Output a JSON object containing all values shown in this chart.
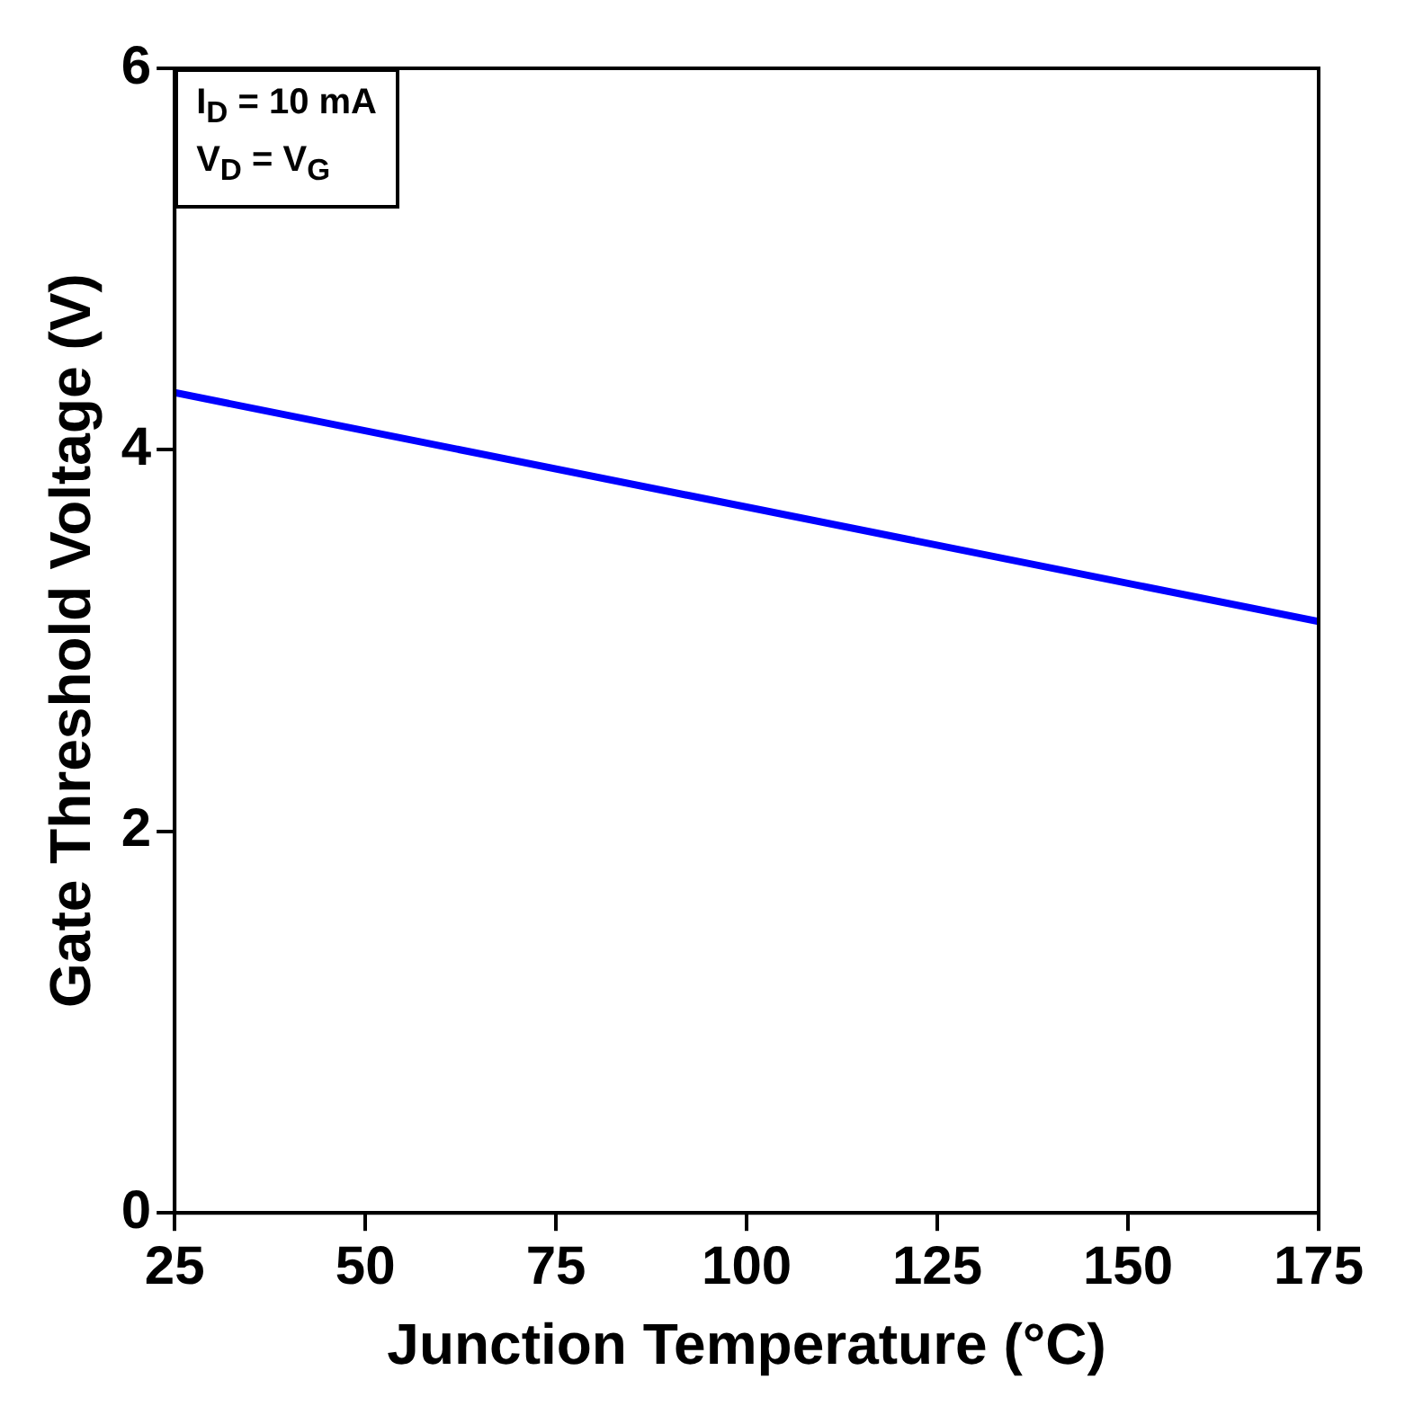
{
  "chart_data": {
    "type": "line",
    "xlabel": "Junction Temperature (°C)",
    "ylabel": "Gate Threshold Voltage (V)",
    "x": [
      25,
      175
    ],
    "series": [
      {
        "color": "#0000ff",
        "values": [
          4.3,
          3.1
        ]
      }
    ],
    "xlim": [
      25,
      175
    ],
    "xticks": [
      25,
      50,
      75,
      100,
      125,
      150,
      175
    ],
    "ylim": [
      0,
      6
    ],
    "yticks": [
      0,
      2,
      4,
      6
    ],
    "grid": false,
    "legend": false,
    "marker": "none",
    "line_style": "solid",
    "annotations": [
      "I$_{D}$ = 10 mA",
      "V$_{D}$ = V$_{G}$"
    ]
  }
}
